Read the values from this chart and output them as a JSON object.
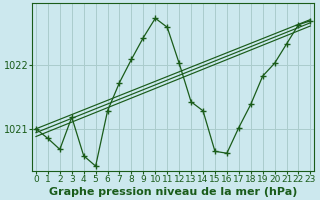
{
  "xlabel": "Graphe pression niveau de la mer (hPa)",
  "background_color": "#cce8ee",
  "grid_color": "#aacccc",
  "line_color": "#1a5c1a",
  "x_hours": [
    0,
    1,
    2,
    3,
    4,
    5,
    6,
    7,
    8,
    9,
    10,
    11,
    12,
    13,
    14,
    15,
    16,
    17,
    18,
    19,
    20,
    21,
    22,
    23
  ],
  "pressure": [
    1021.0,
    1020.85,
    1020.68,
    1021.18,
    1020.58,
    1020.42,
    1021.28,
    1021.72,
    1022.08,
    1022.42,
    1022.72,
    1022.58,
    1022.02,
    1021.42,
    1021.28,
    1020.65,
    1020.62,
    1021.02,
    1021.38,
    1021.82,
    1022.02,
    1022.32,
    1022.62,
    1022.68
  ],
  "trend_lines": [
    [
      [
        0,
        1020.88
      ],
      [
        23,
        1022.6
      ]
    ],
    [
      [
        0,
        1020.94
      ],
      [
        23,
        1022.65
      ]
    ],
    [
      [
        0,
        1021.0
      ],
      [
        23,
        1022.7
      ]
    ]
  ],
  "ylim": [
    1020.35,
    1022.95
  ],
  "yticks": [
    1021,
    1022
  ],
  "xticks": [
    0,
    1,
    2,
    3,
    4,
    5,
    6,
    7,
    8,
    9,
    10,
    11,
    12,
    13,
    14,
    15,
    16,
    17,
    18,
    19,
    20,
    21,
    22,
    23
  ],
  "axis_color": "#1a5c1a",
  "tick_fontsize": 6.5,
  "xlabel_fontsize": 8,
  "xlim": [
    -0.3,
    23.3
  ]
}
